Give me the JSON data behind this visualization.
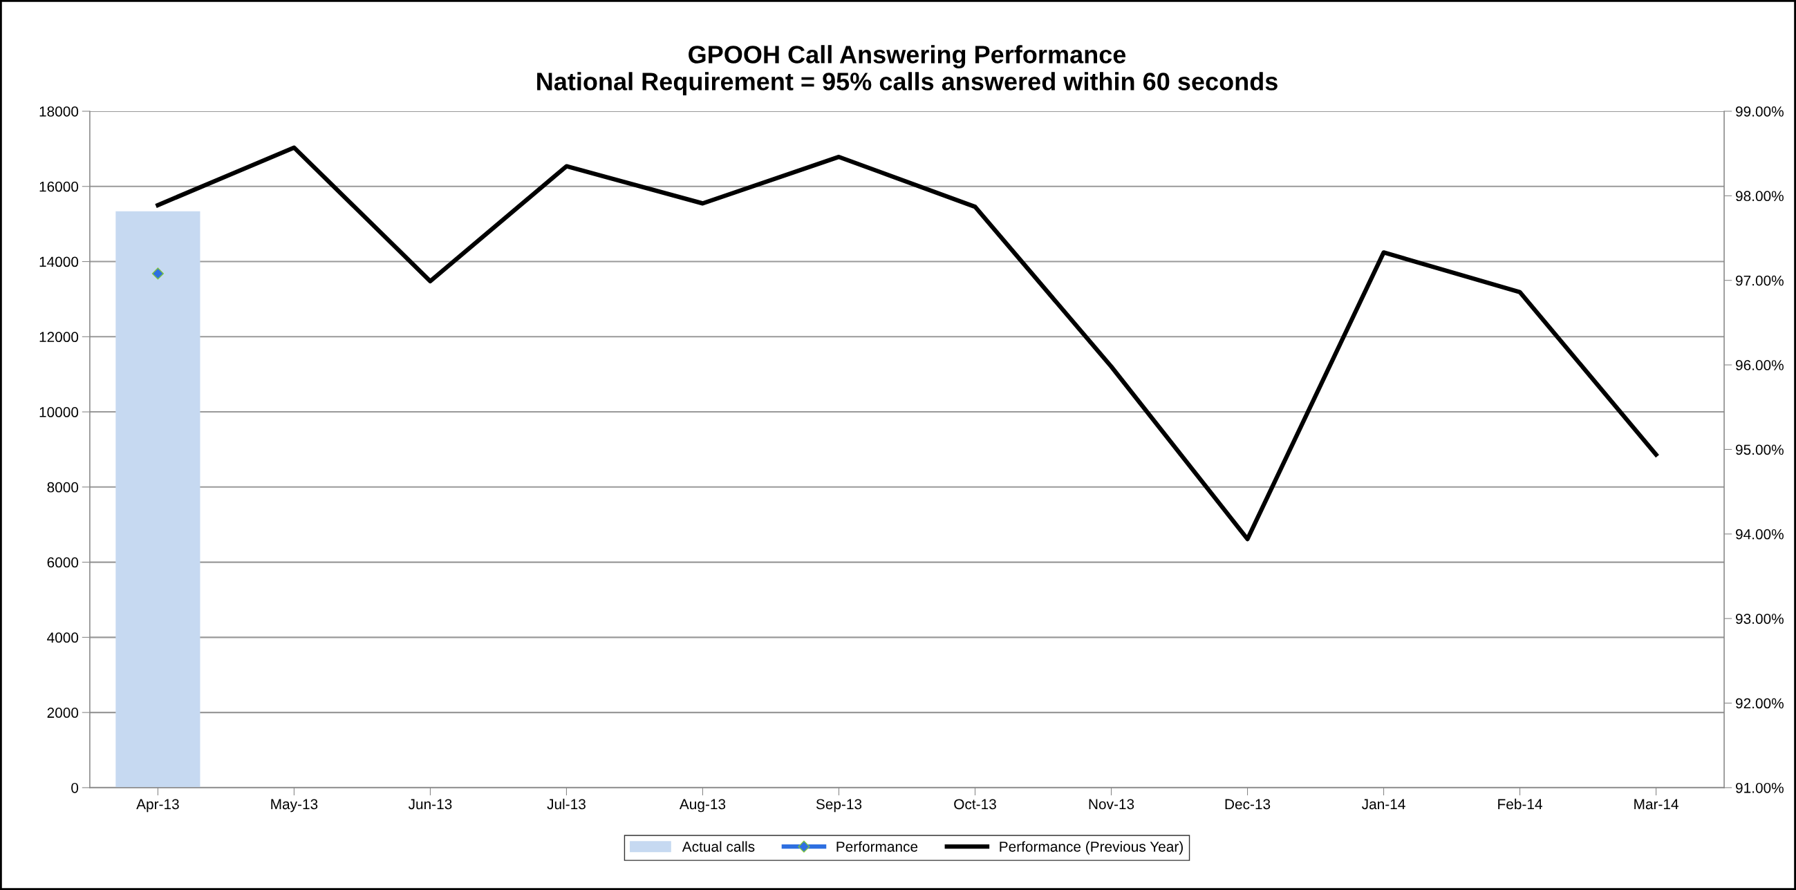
{
  "chart_data": {
    "type": "bar",
    "title": "GPOOH Call Answering Performance\nNational Requirement = 95% calls answered within 60 seconds",
    "categories": [
      "Apr-13",
      "May-13",
      "Jun-13",
      "Jul-13",
      "Aug-13",
      "Sep-13",
      "Oct-13",
      "Nov-13",
      "Dec-13",
      "Jan-14",
      "Feb-14",
      "Mar-14"
    ],
    "series": [
      {
        "name": "Actual calls",
        "color": "#c6d9f1",
        "values": [
          15340,
          null,
          null,
          null,
          null,
          null,
          null,
          null,
          null,
          null,
          null,
          null
        ]
      },
      {
        "name": "Performance",
        "type": "line",
        "axis": "y2",
        "color": "#2e6fe0",
        "marker": "diamond",
        "values": [
          97.08,
          null,
          null,
          null,
          null,
          null,
          null,
          null,
          null,
          null,
          null,
          null
        ]
      },
      {
        "name": "Performance (Previous Year)",
        "type": "line",
        "axis": "y2",
        "color": "#000000",
        "marker": "none",
        "values": [
          97.89,
          98.57,
          96.99,
          98.35,
          97.91,
          98.46,
          97.87,
          95.98,
          93.94,
          97.33,
          96.86,
          94.94
        ]
      }
    ],
    "ylim": [
      0,
      18000
    ],
    "yticks": [
      0,
      2000,
      4000,
      6000,
      8000,
      10000,
      12000,
      14000,
      16000,
      18000
    ],
    "y2lim": [
      91,
      99
    ],
    "y2ticks": [
      {
        "value": 91,
        "label": "91.00%"
      },
      {
        "value": 92,
        "label": "92.00%"
      },
      {
        "value": 93,
        "label": "93.00%"
      },
      {
        "value": 94,
        "label": "94.00%"
      },
      {
        "value": 95,
        "label": "95.00%"
      },
      {
        "value": 96,
        "label": "96.00%"
      },
      {
        "value": 97,
        "label": "97.00%"
      },
      {
        "value": 98,
        "label": "98.00%"
      },
      {
        "value": 99,
        "label": "99.00%"
      }
    ],
    "grid": "y",
    "legend": "bottom"
  }
}
